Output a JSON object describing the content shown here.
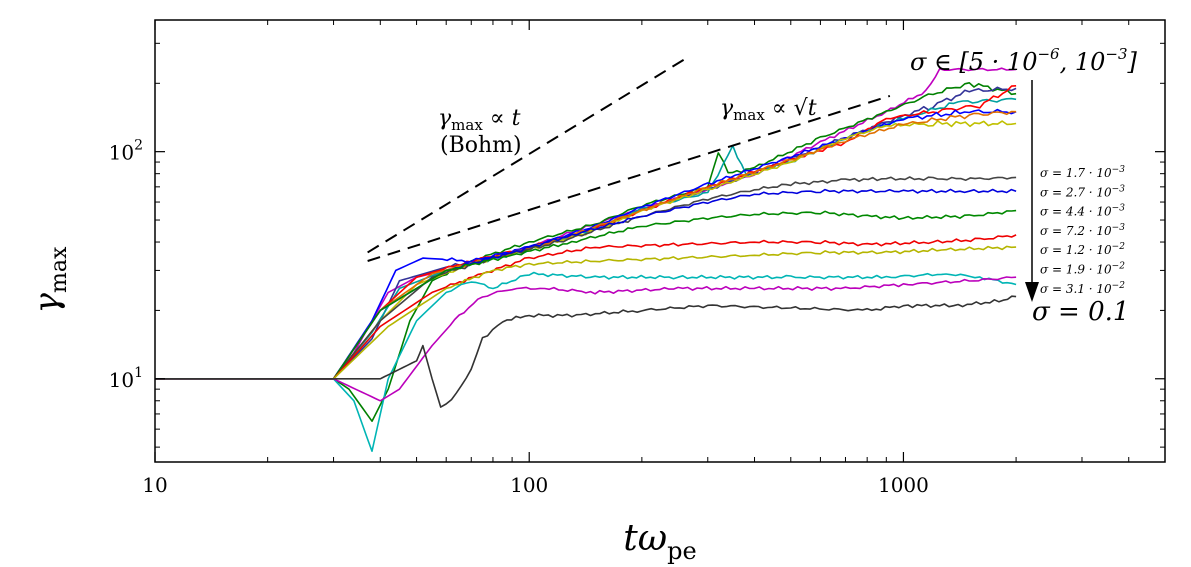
{
  "chart_data": {
    "type": "line",
    "scale": {
      "x": "log",
      "y": "log"
    },
    "xlim": [
      10,
      5000
    ],
    "ylim": [
      4.3,
      380
    ],
    "x_ticks": [
      {
        "value": 10,
        "label": "10"
      },
      {
        "value": 100,
        "label": "100"
      },
      {
        "value": 1000,
        "label": "1000"
      }
    ],
    "y_ticks": [
      {
        "value": 10,
        "base": "10",
        "exp": "1"
      },
      {
        "value": 100,
        "base": "10",
        "exp": "2"
      }
    ],
    "xlabel": {
      "main": "tω",
      "sub": "pe"
    },
    "ylabel": {
      "main": "γ",
      "sub": "max"
    },
    "reference_lines": [
      {
        "name": "bohm",
        "x": [
          37,
          260
        ],
        "y": [
          36,
          255
        ]
      },
      {
        "name": "sqrt",
        "x": [
          37,
          920
        ],
        "y": [
          33,
          176
        ]
      }
    ],
    "annotations": {
      "bohm_line1_main": "γ",
      "bohm_line1_sub": "max",
      "bohm_line1_rest": " ∝ t",
      "bohm_line2": "(Bohm)",
      "sqrt_main": "γ",
      "sqrt_sub": "max",
      "sqrt_rest": " ∝ √t",
      "sigma_range_prefix": "σ ∈ [5 · 10",
      "sigma_range_exp": "−6",
      "sigma_range_suffix": ", 10",
      "sigma_range_exp2": "−3",
      "sigma_range_close": "]",
      "sigma_final": "σ = 0.1"
    },
    "small_labels": [
      {
        "text": "σ = 1.7 · 10",
        "exp": "−3"
      },
      {
        "text": "σ = 2.7 · 10",
        "exp": "−3"
      },
      {
        "text": "σ = 4.4 · 10",
        "exp": "−3"
      },
      {
        "text": "σ = 7.2 · 10",
        "exp": "−3"
      },
      {
        "text": "σ = 1.2 · 10",
        "exp": "−2"
      },
      {
        "text": "σ = 1.9 · 10",
        "exp": "−2"
      },
      {
        "text": "σ = 3.1 · 10",
        "exp": "−2"
      }
    ],
    "series": [
      {
        "name": "sigma-5e-6",
        "color": "#bf00bf",
        "points": [
          [
            10,
            10
          ],
          [
            30,
            10
          ],
          [
            34,
            13
          ],
          [
            38,
            18
          ],
          [
            42,
            24
          ],
          [
            50,
            28
          ],
          [
            60,
            30
          ],
          [
            80,
            34
          ],
          [
            100,
            38
          ],
          [
            150,
            48
          ],
          [
            200,
            56
          ],
          [
            300,
            68
          ],
          [
            400,
            80
          ],
          [
            600,
            110
          ],
          [
            900,
            150
          ],
          [
            1150,
            185
          ],
          [
            1250,
            230
          ],
          [
            2000,
            230
          ]
        ]
      },
      {
        "name": "green-high",
        "color": "#008000",
        "points": [
          [
            10,
            10
          ],
          [
            30,
            10
          ],
          [
            33,
            9
          ],
          [
            38,
            6.5
          ],
          [
            42,
            9
          ],
          [
            48,
            18
          ],
          [
            55,
            27
          ],
          [
            70,
            33
          ],
          [
            100,
            40
          ],
          [
            150,
            48
          ],
          [
            200,
            58
          ],
          [
            300,
            70
          ],
          [
            320,
            100
          ],
          [
            340,
            80
          ],
          [
            400,
            85
          ],
          [
            600,
            115
          ],
          [
            900,
            150
          ],
          [
            1200,
            180
          ],
          [
            1500,
            200
          ],
          [
            2000,
            180
          ]
        ]
      },
      {
        "name": "navy-high",
        "color": "#333399",
        "points": [
          [
            10,
            10
          ],
          [
            30,
            10
          ],
          [
            38,
            15
          ],
          [
            45,
            27
          ],
          [
            60,
            31
          ],
          [
            100,
            37
          ],
          [
            150,
            46
          ],
          [
            200,
            55
          ],
          [
            300,
            68
          ],
          [
            400,
            80
          ],
          [
            600,
            105
          ],
          [
            900,
            135
          ],
          [
            1200,
            160
          ],
          [
            1500,
            185
          ],
          [
            2000,
            190
          ]
        ]
      },
      {
        "name": "teal-high",
        "color": "#00a0a0",
        "points": [
          [
            10,
            10
          ],
          [
            30,
            10
          ],
          [
            38,
            16
          ],
          [
            45,
            25
          ],
          [
            60,
            30
          ],
          [
            100,
            37
          ],
          [
            150,
            46
          ],
          [
            200,
            56
          ],
          [
            300,
            66
          ],
          [
            350,
            105
          ],
          [
            380,
            80
          ],
          [
            500,
            90
          ],
          [
            700,
            115
          ],
          [
            1000,
            140
          ],
          [
            1400,
            165
          ],
          [
            2000,
            170
          ]
        ]
      },
      {
        "name": "red-high",
        "color": "#ff0000",
        "points": [
          [
            10,
            10
          ],
          [
            30,
            10
          ],
          [
            40,
            20
          ],
          [
            50,
            28
          ],
          [
            70,
            33
          ],
          [
            100,
            38
          ],
          [
            150,
            46
          ],
          [
            200,
            55
          ],
          [
            300,
            70
          ],
          [
            500,
            92
          ],
          [
            700,
            110
          ],
          [
            900,
            140
          ],
          [
            1200,
            150
          ],
          [
            1600,
            160
          ],
          [
            2000,
            195
          ]
        ]
      },
      {
        "name": "blue-high",
        "color": "#0000ff",
        "points": [
          [
            10,
            10
          ],
          [
            30,
            10
          ],
          [
            38,
            18
          ],
          [
            44,
            30
          ],
          [
            52,
            34
          ],
          [
            70,
            33
          ],
          [
            100,
            38
          ],
          [
            150,
            47
          ],
          [
            200,
            57
          ],
          [
            300,
            72
          ],
          [
            500,
            95
          ],
          [
            700,
            115
          ],
          [
            1000,
            140
          ],
          [
            1500,
            150
          ],
          [
            2000,
            150
          ]
        ]
      },
      {
        "name": "olive-high",
        "color": "#c0c000",
        "points": [
          [
            10,
            10
          ],
          [
            30,
            10
          ],
          [
            40,
            18
          ],
          [
            50,
            26
          ],
          [
            70,
            32
          ],
          [
            100,
            37
          ],
          [
            150,
            45
          ],
          [
            200,
            55
          ],
          [
            300,
            68
          ],
          [
            500,
            90
          ],
          [
            700,
            115
          ],
          [
            900,
            130
          ],
          [
            1200,
            133
          ],
          [
            2000,
            133
          ]
        ]
      },
      {
        "name": "orange-high",
        "color": "#e07000",
        "points": [
          [
            10,
            10
          ],
          [
            30,
            10
          ],
          [
            40,
            20
          ],
          [
            55,
            29
          ],
          [
            80,
            34
          ],
          [
            120,
            41
          ],
          [
            200,
            55
          ],
          [
            300,
            70
          ],
          [
            500,
            92
          ],
          [
            700,
            112
          ],
          [
            1000,
            132
          ],
          [
            1500,
            145
          ],
          [
            2000,
            150
          ]
        ]
      },
      {
        "name": "sigma-1.7e-3",
        "color": "#444444",
        "points": [
          [
            10,
            10
          ],
          [
            30,
            10
          ],
          [
            40,
            18
          ],
          [
            55,
            28
          ],
          [
            80,
            34
          ],
          [
            120,
            40
          ],
          [
            200,
            52
          ],
          [
            300,
            62
          ],
          [
            400,
            68
          ],
          [
            500,
            72
          ],
          [
            700,
            75
          ],
          [
            900,
            76
          ],
          [
            1200,
            76
          ],
          [
            1600,
            76
          ],
          [
            2000,
            77
          ]
        ]
      },
      {
        "name": "sigma-2.7e-3",
        "color": "#0000dd",
        "points": [
          [
            10,
            10
          ],
          [
            30,
            10
          ],
          [
            40,
            20
          ],
          [
            60,
            30
          ],
          [
            90,
            36
          ],
          [
            130,
            43
          ],
          [
            200,
            52
          ],
          [
            300,
            60
          ],
          [
            400,
            65
          ],
          [
            600,
            67
          ],
          [
            1000,
            67
          ],
          [
            1500,
            67
          ],
          [
            2000,
            67
          ]
        ]
      },
      {
        "name": "sigma-4.4e-3",
        "color": "#008800",
        "points": [
          [
            10,
            10
          ],
          [
            30,
            10
          ],
          [
            40,
            20
          ],
          [
            60,
            30
          ],
          [
            90,
            35
          ],
          [
            130,
            40
          ],
          [
            200,
            47
          ],
          [
            300,
            51
          ],
          [
            400,
            53
          ],
          [
            600,
            54
          ],
          [
            800,
            52
          ],
          [
            1000,
            51
          ],
          [
            1500,
            52
          ],
          [
            2000,
            55
          ]
        ]
      },
      {
        "name": "sigma-7.2e-3",
        "color": "#ee0000",
        "points": [
          [
            10,
            10
          ],
          [
            30,
            10
          ],
          [
            40,
            17
          ],
          [
            55,
            24
          ],
          [
            75,
            29
          ],
          [
            100,
            34
          ],
          [
            150,
            38
          ],
          [
            250,
            39
          ],
          [
            400,
            40
          ],
          [
            600,
            40
          ],
          [
            800,
            39
          ],
          [
            1200,
            40
          ],
          [
            1600,
            41
          ],
          [
            2000,
            43
          ]
        ]
      },
      {
        "name": "sigma-1.2e-2",
        "color": "#b5b500",
        "points": [
          [
            10,
            10
          ],
          [
            30,
            10
          ],
          [
            42,
            17
          ],
          [
            60,
            25
          ],
          [
            80,
            30
          ],
          [
            100,
            32
          ],
          [
            150,
            33
          ],
          [
            250,
            34
          ],
          [
            400,
            35
          ],
          [
            600,
            36
          ],
          [
            900,
            36
          ],
          [
            1300,
            37
          ],
          [
            2000,
            38
          ]
        ]
      },
      {
        "name": "sigma-1.9e-2",
        "color": "#00b5b5",
        "points": [
          [
            10,
            10
          ],
          [
            30,
            10
          ],
          [
            34,
            8
          ],
          [
            38,
            4.8
          ],
          [
            42,
            10
          ],
          [
            50,
            18
          ],
          [
            60,
            24
          ],
          [
            70,
            27
          ],
          [
            80,
            25
          ],
          [
            100,
            29
          ],
          [
            150,
            28
          ],
          [
            250,
            28
          ],
          [
            500,
            28
          ],
          [
            900,
            28
          ],
          [
            1300,
            29
          ],
          [
            1600,
            28
          ],
          [
            2000,
            26
          ]
        ]
      },
      {
        "name": "sigma-3.1e-2",
        "color": "#bb00bb",
        "points": [
          [
            10,
            10
          ],
          [
            30,
            10
          ],
          [
            40,
            8
          ],
          [
            45,
            9
          ],
          [
            55,
            14
          ],
          [
            65,
            19
          ],
          [
            75,
            23
          ],
          [
            90,
            25
          ],
          [
            110,
            25
          ],
          [
            150,
            24
          ],
          [
            250,
            25
          ],
          [
            400,
            25
          ],
          [
            700,
            25
          ],
          [
            1000,
            26
          ],
          [
            1500,
            27
          ],
          [
            2000,
            28
          ]
        ]
      },
      {
        "name": "sigma-0.1",
        "color": "#333333",
        "points": [
          [
            10,
            10
          ],
          [
            30,
            10
          ],
          [
            40,
            10
          ],
          [
            50,
            12
          ],
          [
            52,
            14
          ],
          [
            55,
            10
          ],
          [
            58,
            7.5
          ],
          [
            62,
            8
          ],
          [
            70,
            11
          ],
          [
            75,
            15
          ],
          [
            85,
            18
          ],
          [
            100,
            19
          ],
          [
            130,
            19
          ],
          [
            200,
            20
          ],
          [
            300,
            21
          ],
          [
            500,
            20.5
          ],
          [
            800,
            20
          ],
          [
            1000,
            21
          ],
          [
            1400,
            21
          ],
          [
            1800,
            22
          ],
          [
            2000,
            23
          ]
        ]
      }
    ]
  }
}
